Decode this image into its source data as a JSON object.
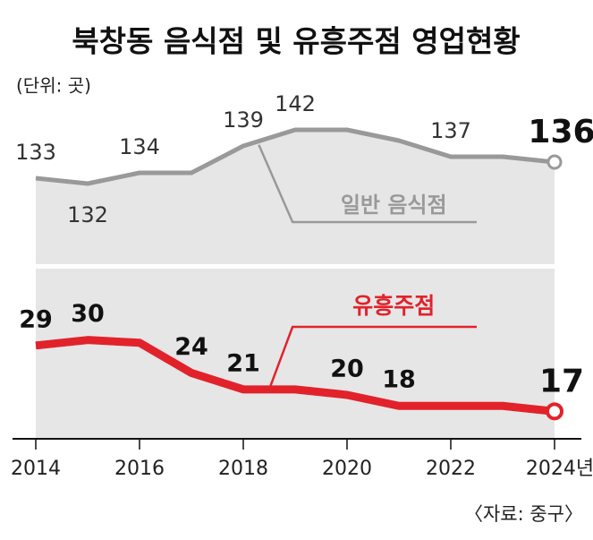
{
  "chart_data": {
    "type": "line",
    "title": "북창동 음식점 및 유흥주점 영업현황",
    "subtitle": "(단위: 곳)",
    "source": "〈자료: 중구〉",
    "x": [
      2014,
      2015,
      2016,
      2017,
      2018,
      2019,
      2020,
      2021,
      2022,
      2023,
      2024
    ],
    "xlim": [
      2014,
      2024
    ],
    "xticks": [
      2014,
      2016,
      2018,
      2020,
      2022,
      {
        "value": 2024,
        "label": "2024년"
      }
    ],
    "panels": [
      {
        "name": "일반 음식점",
        "color": "#999999",
        "ylim": [
          117,
          160
        ],
        "values": [
          133,
          132,
          134,
          134,
          139,
          142,
          142,
          140,
          137,
          137,
          136
        ],
        "value_labels": [
          "133",
          "132",
          "134",
          null,
          "139",
          "142",
          null,
          null,
          "137",
          null,
          "136"
        ]
      },
      {
        "name": "유흥주점",
        "color": "#e2222b",
        "ylim": [
          12,
          43
        ],
        "values": [
          29,
          30,
          29.5,
          24,
          21,
          21,
          20,
          18,
          18,
          18,
          17
        ],
        "value_labels": [
          "29",
          "30",
          null,
          "24",
          "21",
          null,
          "20",
          "18",
          null,
          null,
          "17"
        ]
      }
    ]
  }
}
